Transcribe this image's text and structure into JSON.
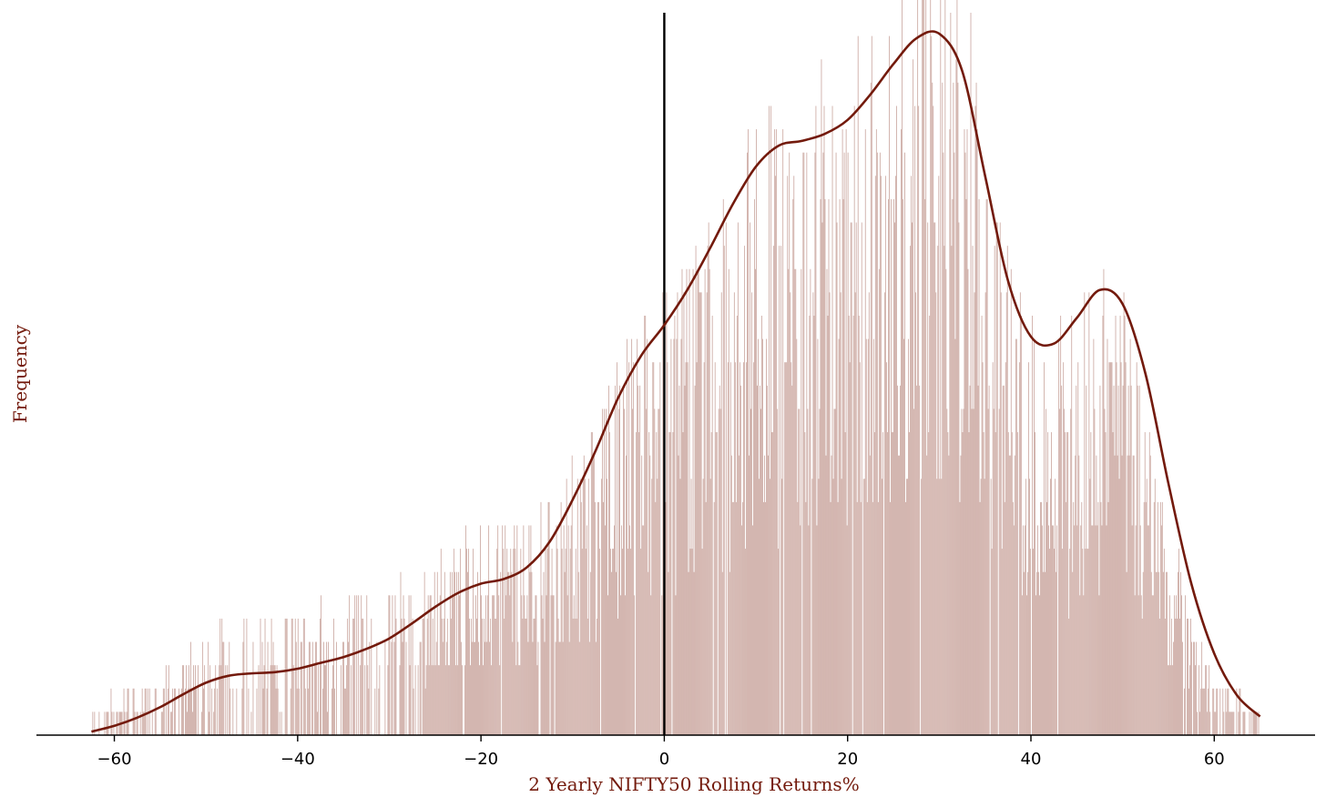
{
  "chart_data": {
    "type": "histogram",
    "title": "",
    "xlabel": "2 Yearly NIFTY50 Rolling Returns%",
    "ylabel": "Frequency",
    "xlim": [
      -68.5,
      71
    ],
    "xticks": [
      -60,
      -40,
      -20,
      0,
      20,
      40,
      60
    ],
    "xtick_labels": [
      "−60",
      "−40",
      "−20",
      "0",
      "20",
      "40",
      "60"
    ],
    "y_ticks_shown": false,
    "ylim": [
      0,
      31
    ],
    "bin_width": 0.1,
    "x_range": [
      -62.5,
      65
    ],
    "grid": false,
    "reference_line_x": 0,
    "colors": {
      "bars": "#cdaba4",
      "kde": "#731a0c",
      "axis_title": "#731a0c",
      "reference_line": "#000000"
    },
    "envelope": {
      "x": [
        -62.5,
        -60,
        -56,
        -52,
        -48,
        -44,
        -40,
        -36,
        -32,
        -28,
        -24,
        -20,
        -16,
        -12,
        -8,
        -4,
        0,
        2,
        4,
        6,
        8,
        10,
        12,
        14,
        16,
        18,
        20,
        22,
        24,
        26,
        28,
        30,
        32,
        34,
        36,
        38,
        40,
        42,
        44,
        46,
        48,
        50,
        52,
        54,
        56,
        58,
        60,
        62,
        64,
        65
      ],
      "y": [
        0.6,
        1.2,
        1.6,
        2.5,
        3.5,
        3.8,
        4.0,
        4.4,
        4.8,
        5.6,
        6.8,
        7.6,
        8.1,
        9.2,
        11.6,
        14.4,
        16.2,
        17.4,
        18.2,
        19.4,
        21.0,
        22.6,
        23.3,
        23.4,
        23.6,
        24.1,
        24.8,
        25.6,
        26.3,
        27.2,
        28.2,
        28.6,
        27.6,
        24.9,
        21.0,
        17.6,
        15.6,
        14.5,
        15.0,
        16.4,
        17.8,
        16.8,
        13.4,
        9.2,
        5.6,
        3.3,
        2.1,
        1.5,
        1.1,
        0.9
      ]
    },
    "kde": {
      "x": [
        -62.5,
        -60,
        -57.5,
        -55,
        -52.5,
        -50,
        -47.5,
        -45,
        -42.5,
        -40,
        -37.5,
        -35,
        -32.5,
        -30,
        -27.5,
        -25,
        -22.5,
        -20,
        -17.5,
        -15,
        -12.5,
        -10,
        -7.5,
        -5,
        -2.5,
        0,
        2.5,
        5,
        7.5,
        10,
        12.5,
        15,
        17.5,
        20,
        22.5,
        25,
        27.5,
        30,
        32.5,
        35,
        37.5,
        40,
        42.5,
        45,
        47.5,
        50,
        52.5,
        55,
        57.5,
        60,
        62.5,
        65
      ],
      "y": [
        0.15,
        0.4,
        0.75,
        1.2,
        1.75,
        2.25,
        2.55,
        2.65,
        2.7,
        2.85,
        3.1,
        3.35,
        3.7,
        4.15,
        4.8,
        5.5,
        6.1,
        6.5,
        6.7,
        7.2,
        8.3,
        10.1,
        12.2,
        14.5,
        16.3,
        17.6,
        19.1,
        20.9,
        22.8,
        24.4,
        25.3,
        25.5,
        25.8,
        26.4,
        27.5,
        28.8,
        29.9,
        30.1,
        28.5,
        24.0,
        19.5,
        17.1,
        16.8,
        17.9,
        19.1,
        18.5,
        15.5,
        10.8,
        6.5,
        3.5,
        1.7,
        0.8
      ]
    }
  }
}
